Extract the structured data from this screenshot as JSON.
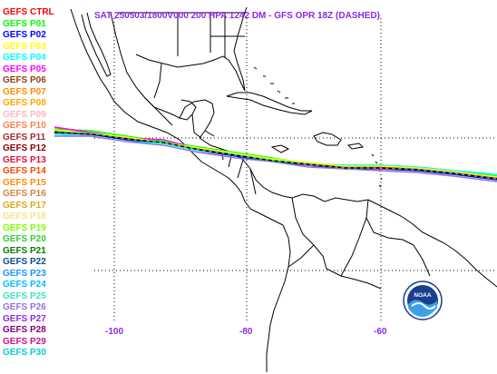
{
  "title": "SAT 250503/1800V000  200 HPA 1242 DM - GFS OPR 18Z (DASHED)",
  "title_color": "#8a2be2",
  "legend": [
    {
      "label": "GEFS CTRL",
      "color": "#ff0000"
    },
    {
      "label": "GEFS P01",
      "color": "#00ff00"
    },
    {
      "label": "GEFS P02",
      "color": "#0000ff"
    },
    {
      "label": "GEFS P03",
      "color": "#ffff00"
    },
    {
      "label": "GEFS P04",
      "color": "#00ffff"
    },
    {
      "label": "GEFS P05",
      "color": "#ff00ff"
    },
    {
      "label": "GEFS P06",
      "color": "#8b4513"
    },
    {
      "label": "GEFS P07",
      "color": "#ff8c00"
    },
    {
      "label": "GEFS P08",
      "color": "#ffa500"
    },
    {
      "label": "GEFS P09",
      "color": "#ffb6c1"
    },
    {
      "label": "GEFS P10",
      "color": "#ff7f50"
    },
    {
      "label": "GEFS P11",
      "color": "#a52a2a"
    },
    {
      "label": "GEFS P12",
      "color": "#8b0000"
    },
    {
      "label": "GEFS P13",
      "color": "#dc143c"
    },
    {
      "label": "GEFS P14",
      "color": "#ff4500"
    },
    {
      "label": "GEFS P15",
      "color": "#ff8c00"
    },
    {
      "label": "GEFS P16",
      "color": "#cd853f"
    },
    {
      "label": "GEFS P17",
      "color": "#daa520"
    },
    {
      "label": "GEFS P18",
      "color": "#f0e68c"
    },
    {
      "label": "GEFS P19",
      "color": "#7fff00"
    },
    {
      "label": "GEFS P20",
      "color": "#32cd32"
    },
    {
      "label": "GEFS P21",
      "color": "#008000"
    },
    {
      "label": "GEFS P22",
      "color": "#0b4a8b"
    },
    {
      "label": "GEFS P23",
      "color": "#1e90ff"
    },
    {
      "label": "GEFS P24",
      "color": "#00bfff"
    },
    {
      "label": "GEFS P25",
      "color": "#40e0d0"
    },
    {
      "label": "GEFS P26",
      "color": "#9370db"
    },
    {
      "label": "GEFS P27",
      "color": "#8a2be2"
    },
    {
      "label": "GEFS P28",
      "color": "#800080"
    },
    {
      "label": "GEFS P29",
      "color": "#c71585"
    },
    {
      "label": "GEFS P30",
      "color": "#00ced1"
    }
  ],
  "longitude_labels": [
    "-100",
    "-80",
    "-60"
  ],
  "gridline_color": "#000000",
  "coast_color": "#000000"
}
